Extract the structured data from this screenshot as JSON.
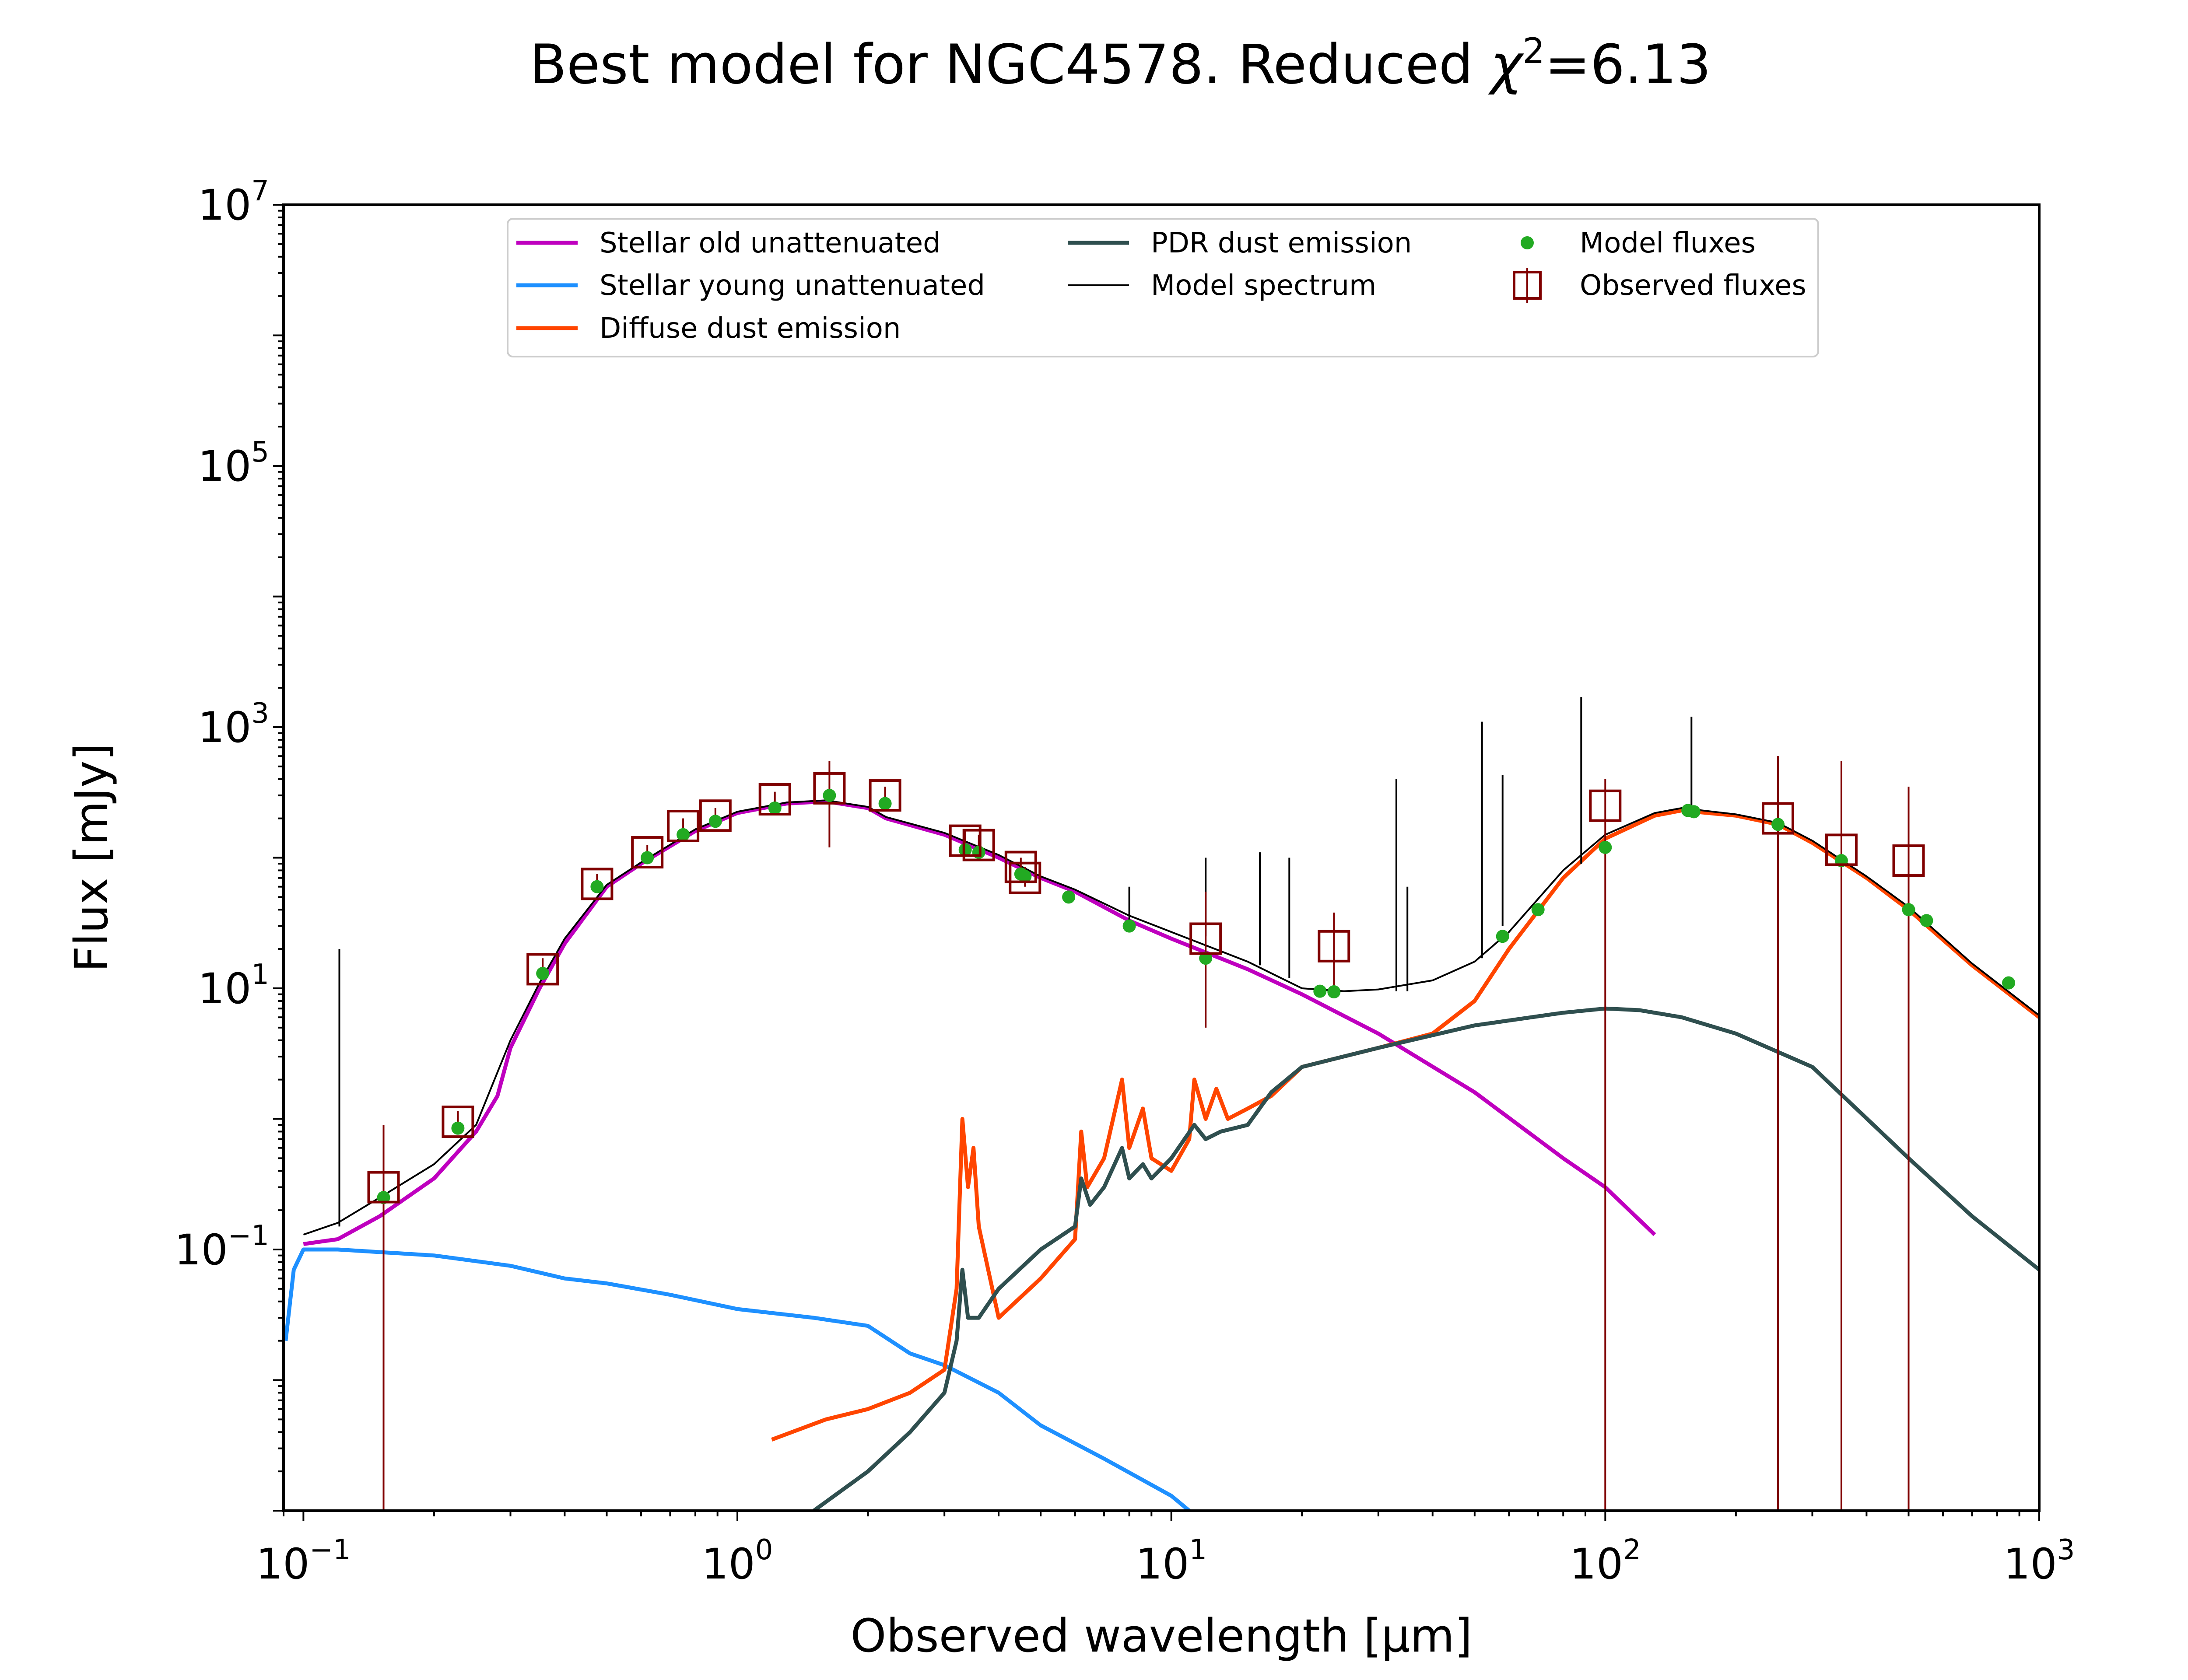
{
  "figure": {
    "title_prefix": "Best model for NGC4578. Reduced ",
    "title_symbol": "χ",
    "title_exp": "2",
    "title_suffix": "=6.13"
  },
  "chart_data": {
    "type": "line",
    "title": "Best model for NGC4578. Reduced χ²=6.13",
    "xlabel": "Observed wavelength [μm]",
    "ylabel": "Flux [mJy]",
    "x_scale": "log",
    "y_scale": "log",
    "xlim": [
      0.09,
      1000
    ],
    "ylim": [
      0.001,
      10000000
    ],
    "x_ticks": [
      {
        "value": 0.1,
        "base": "10",
        "exp": "−1"
      },
      {
        "value": 1,
        "base": "10",
        "exp": "0"
      },
      {
        "value": 10,
        "base": "10",
        "exp": "1"
      },
      {
        "value": 100,
        "base": "10",
        "exp": "2"
      },
      {
        "value": 1000,
        "base": "10",
        "exp": "3"
      }
    ],
    "y_ticks": [
      {
        "value": 0.1,
        "base": "10",
        "exp": "−1"
      },
      {
        "value": 10,
        "base": "10",
        "exp": "1"
      },
      {
        "value": 1000,
        "base": "10",
        "exp": "3"
      },
      {
        "value": 100000,
        "base": "10",
        "exp": "5"
      },
      {
        "value": 10000000,
        "base": "10",
        "exp": "7"
      }
    ],
    "grid": false,
    "legend_position": "top",
    "series": [
      {
        "name": "Stellar old unattenuated",
        "kind": "line",
        "color": "#bf00bf",
        "points": [
          [
            0.1,
            0.11
          ],
          [
            0.12,
            0.12
          ],
          [
            0.15,
            0.18
          ],
          [
            0.2,
            0.35
          ],
          [
            0.25,
            0.8
          ],
          [
            0.28,
            1.5
          ],
          [
            0.3,
            3.5
          ],
          [
            0.35,
            10
          ],
          [
            0.4,
            22
          ],
          [
            0.5,
            60
          ],
          [
            0.6,
            90
          ],
          [
            0.8,
            160
          ],
          [
            1.0,
            220
          ],
          [
            1.3,
            260
          ],
          [
            1.6,
            270
          ],
          [
            2.0,
            240
          ],
          [
            2.2,
            200
          ],
          [
            3.0,
            150
          ],
          [
            4.0,
            100
          ],
          [
            5.0,
            70
          ],
          [
            6.0,
            55
          ],
          [
            8.0,
            33
          ],
          [
            10,
            24
          ],
          [
            15,
            14
          ],
          [
            20,
            9
          ],
          [
            30,
            4.5
          ],
          [
            50,
            1.6
          ],
          [
            80,
            0.5
          ],
          [
            100,
            0.3
          ],
          [
            130,
            0.13
          ]
        ]
      },
      {
        "name": "Stellar young unattenuated",
        "kind": "line",
        "color": "#1e90ff",
        "points": [
          [
            0.091,
            0.02
          ],
          [
            0.095,
            0.07
          ],
          [
            0.1,
            0.1
          ],
          [
            0.12,
            0.1
          ],
          [
            0.2,
            0.09
          ],
          [
            0.3,
            0.075
          ],
          [
            0.4,
            0.06
          ],
          [
            0.5,
            0.055
          ],
          [
            0.7,
            0.045
          ],
          [
            1.0,
            0.035
          ],
          [
            1.5,
            0.03
          ],
          [
            2.0,
            0.026
          ],
          [
            2.5,
            0.016
          ],
          [
            3.0,
            0.013
          ],
          [
            4.0,
            0.008
          ],
          [
            5.0,
            0.0045
          ],
          [
            7.0,
            0.0025
          ],
          [
            10,
            0.0013
          ],
          [
            11,
            0.001
          ]
        ]
      },
      {
        "name": "Diffuse dust emission",
        "kind": "line",
        "color": "#ff4500",
        "points": [
          [
            1.2,
            0.0035
          ],
          [
            1.6,
            0.005
          ],
          [
            2.0,
            0.006
          ],
          [
            2.5,
            0.008
          ],
          [
            3.0,
            0.012
          ],
          [
            3.2,
            0.05
          ],
          [
            3.3,
            1.0
          ],
          [
            3.4,
            0.3
          ],
          [
            3.5,
            0.6
          ],
          [
            3.6,
            0.15
          ],
          [
            4.0,
            0.03
          ],
          [
            5.0,
            0.06
          ],
          [
            6.0,
            0.12
          ],
          [
            6.2,
            0.8
          ],
          [
            6.4,
            0.3
          ],
          [
            7.0,
            0.5
          ],
          [
            7.7,
            2.0
          ],
          [
            8.0,
            0.6
          ],
          [
            8.6,
            1.2
          ],
          [
            9.0,
            0.5
          ],
          [
            10,
            0.4
          ],
          [
            11,
            0.7
          ],
          [
            11.3,
            2.0
          ],
          [
            12,
            1.0
          ],
          [
            12.7,
            1.7
          ],
          [
            13.5,
            1.0
          ],
          [
            15,
            1.2
          ],
          [
            17,
            1.5
          ],
          [
            20,
            2.5
          ],
          [
            30,
            3.5
          ],
          [
            40,
            4.5
          ],
          [
            50,
            8
          ],
          [
            60,
            20
          ],
          [
            80,
            70
          ],
          [
            100,
            140
          ],
          [
            130,
            210
          ],
          [
            150,
            230
          ],
          [
            200,
            210
          ],
          [
            250,
            180
          ],
          [
            300,
            130
          ],
          [
            400,
            70
          ],
          [
            500,
            40
          ],
          [
            700,
            15
          ],
          [
            1000,
            6
          ]
        ]
      },
      {
        "name": "PDR dust emission",
        "kind": "line",
        "color": "#2f4f4f",
        "points": [
          [
            1.5,
            0.001
          ],
          [
            2.0,
            0.002
          ],
          [
            2.5,
            0.004
          ],
          [
            3.0,
            0.008
          ],
          [
            3.2,
            0.02
          ],
          [
            3.3,
            0.07
          ],
          [
            3.4,
            0.03
          ],
          [
            3.6,
            0.03
          ],
          [
            4.0,
            0.05
          ],
          [
            5.0,
            0.1
          ],
          [
            6.0,
            0.15
          ],
          [
            6.2,
            0.35
          ],
          [
            6.5,
            0.22
          ],
          [
            7.0,
            0.3
          ],
          [
            7.7,
            0.6
          ],
          [
            8.0,
            0.35
          ],
          [
            8.6,
            0.45
          ],
          [
            9.0,
            0.35
          ],
          [
            10,
            0.5
          ],
          [
            11.3,
            0.9
          ],
          [
            12,
            0.7
          ],
          [
            13,
            0.8
          ],
          [
            15,
            0.9
          ],
          [
            17,
            1.6
          ],
          [
            20,
            2.5
          ],
          [
            30,
            3.5
          ],
          [
            50,
            5.2
          ],
          [
            80,
            6.5
          ],
          [
            100,
            7.0
          ],
          [
            120,
            6.8
          ],
          [
            150,
            6.0
          ],
          [
            200,
            4.5
          ],
          [
            300,
            2.5
          ],
          [
            500,
            0.5
          ],
          [
            700,
            0.18
          ],
          [
            1000,
            0.07
          ]
        ]
      },
      {
        "name": "Model spectrum",
        "kind": "line",
        "color": "#000000",
        "points": [
          [
            0.1,
            0.13
          ],
          [
            0.12,
            0.16
          ],
          [
            0.15,
            0.25
          ],
          [
            0.2,
            0.45
          ],
          [
            0.25,
            0.9
          ],
          [
            0.3,
            4
          ],
          [
            0.35,
            11
          ],
          [
            0.4,
            24
          ],
          [
            0.5,
            62
          ],
          [
            0.6,
            92
          ],
          [
            0.8,
            165
          ],
          [
            1.0,
            225
          ],
          [
            1.3,
            265
          ],
          [
            1.6,
            275
          ],
          [
            2.0,
            245
          ],
          [
            2.2,
            205
          ],
          [
            3.0,
            155
          ],
          [
            4.0,
            105
          ],
          [
            5.0,
            72
          ],
          [
            6.0,
            57
          ],
          [
            8.0,
            36
          ],
          [
            10,
            27
          ],
          [
            15,
            16
          ],
          [
            20,
            10
          ],
          [
            25,
            9.5
          ],
          [
            30,
            9.8
          ],
          [
            40,
            11.5
          ],
          [
            50,
            16
          ],
          [
            60,
            27
          ],
          [
            80,
            80
          ],
          [
            100,
            150
          ],
          [
            130,
            220
          ],
          [
            150,
            240
          ],
          [
            200,
            215
          ],
          [
            250,
            185
          ],
          [
            300,
            135
          ],
          [
            400,
            72
          ],
          [
            500,
            42
          ],
          [
            700,
            15.5
          ],
          [
            1000,
            6.2
          ]
        ],
        "spikes": [
          [
            0.121,
            0.15,
            20
          ],
          [
            8,
            30,
            60
          ],
          [
            12,
            25,
            100
          ],
          [
            16,
            15,
            110
          ],
          [
            18.7,
            12,
            100
          ],
          [
            33,
            9.5,
            400
          ],
          [
            35,
            9.5,
            60
          ],
          [
            52,
            17,
            1100
          ],
          [
            58,
            30,
            430
          ],
          [
            88,
            90,
            1700
          ],
          [
            158,
            230,
            1200
          ]
        ]
      },
      {
        "name": "Model fluxes",
        "kind": "scatter",
        "color": "#22aa22",
        "points": [
          [
            0.153,
            0.25
          ],
          [
            0.227,
            0.85
          ],
          [
            0.356,
            13
          ],
          [
            0.475,
            60
          ],
          [
            0.62,
            100
          ],
          [
            0.75,
            150
          ],
          [
            0.89,
            190
          ],
          [
            1.22,
            240
          ],
          [
            1.63,
            300
          ],
          [
            2.19,
            260
          ],
          [
            3.35,
            115
          ],
          [
            3.6,
            110
          ],
          [
            4.5,
            75
          ],
          [
            4.6,
            72
          ],
          [
            5.8,
            50
          ],
          [
            8.0,
            30
          ],
          [
            12,
            17
          ],
          [
            22,
            9.5
          ],
          [
            23.7,
            9.4
          ],
          [
            58,
            25
          ],
          [
            70,
            40
          ],
          [
            100,
            120
          ],
          [
            155,
            230
          ],
          [
            160,
            225
          ],
          [
            250,
            180
          ],
          [
            350,
            95
          ],
          [
            500,
            40
          ],
          [
            550,
            33
          ],
          [
            850,
            11
          ]
        ]
      },
      {
        "name": "Observed fluxes",
        "kind": "errorbar",
        "color": "#800000",
        "points": [
          [
            0.153,
            0.3,
            0.001,
            0.9
          ],
          [
            0.227,
            0.95,
            0.8,
            1.15
          ],
          [
            0.356,
            14,
            12,
            17
          ],
          [
            0.475,
            63,
            55,
            75
          ],
          [
            0.62,
            110,
            95,
            125
          ],
          [
            0.75,
            175,
            150,
            200
          ],
          [
            0.89,
            210,
            180,
            240
          ],
          [
            1.22,
            280,
            250,
            320
          ],
          [
            1.63,
            340,
            120,
            550
          ],
          [
            2.19,
            300,
            250,
            350
          ],
          [
            3.35,
            135,
            115,
            160
          ],
          [
            3.6,
            125,
            105,
            150
          ],
          [
            4.5,
            85,
            70,
            100
          ],
          [
            4.6,
            70,
            60,
            85
          ],
          [
            12,
            24,
            5,
            55
          ],
          [
            23.7,
            21,
            10,
            38
          ],
          [
            100,
            250,
            0.001,
            400
          ],
          [
            250,
            200,
            0.001,
            600
          ],
          [
            350,
            115,
            0.001,
            550
          ],
          [
            500,
            95,
            0.001,
            350
          ]
        ]
      }
    ]
  }
}
